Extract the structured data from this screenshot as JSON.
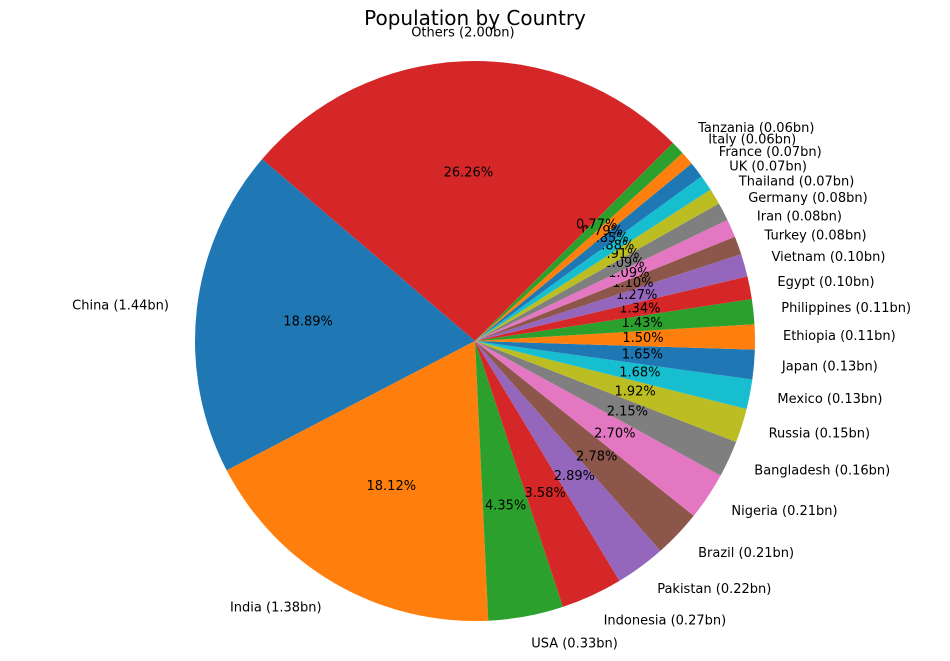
{
  "chart_data": {
    "type": "pie",
    "title": "Population by Country",
    "start_angle_deg": 45,
    "direction": "counterclockwise",
    "slices": [
      {
        "label": "Others (2.00bn)",
        "value": 2.0,
        "pct": "26.26%",
        "color": "#d62728"
      },
      {
        "label": "China (1.44bn)",
        "value": 1.44,
        "pct": "18.89%",
        "color": "#1f77b4"
      },
      {
        "label": "India (1.38bn)",
        "value": 1.38,
        "pct": "18.12%",
        "color": "#ff7f0e"
      },
      {
        "label": "USA (0.33bn)",
        "value": 0.33,
        "pct": "4.35%",
        "color": "#2ca02c"
      },
      {
        "label": "Indonesia (0.27bn)",
        "value": 0.27,
        "pct": "3.58%",
        "color": "#d62728"
      },
      {
        "label": "Pakistan (0.22bn)",
        "value": 0.22,
        "pct": "2.89%",
        "color": "#9467bd"
      },
      {
        "label": "Brazil (0.21bn)",
        "value": 0.21,
        "pct": "2.78%",
        "color": "#8c564b"
      },
      {
        "label": "Nigeria (0.21bn)",
        "value": 0.21,
        "pct": "2.70%",
        "color": "#e377c2"
      },
      {
        "label": "Bangladesh (0.16bn)",
        "value": 0.16,
        "pct": "2.15%",
        "color": "#7f7f7f"
      },
      {
        "label": "Russia (0.15bn)",
        "value": 0.15,
        "pct": "1.92%",
        "color": "#bcbd22"
      },
      {
        "label": "Mexico (0.13bn)",
        "value": 0.13,
        "pct": "1.68%",
        "color": "#17becf"
      },
      {
        "label": "Japan (0.13bn)",
        "value": 0.13,
        "pct": "1.65%",
        "color": "#1f77b4"
      },
      {
        "label": "Ethiopia (0.11bn)",
        "value": 0.11,
        "pct": "1.50%",
        "color": "#ff7f0e"
      },
      {
        "label": "Philippines (0.11bn)",
        "value": 0.11,
        "pct": "1.43%",
        "color": "#2ca02c"
      },
      {
        "label": "Egypt (0.10bn)",
        "value": 0.1,
        "pct": "1.34%",
        "color": "#d62728"
      },
      {
        "label": "Vietnam (0.10bn)",
        "value": 0.1,
        "pct": "1.27%",
        "color": "#9467bd"
      },
      {
        "label": "Turkey (0.08bn)",
        "value": 0.08,
        "pct": "1.10%",
        "color": "#8c564b"
      },
      {
        "label": "Iran (0.08bn)",
        "value": 0.08,
        "pct": "1.09%",
        "color": "#e377c2"
      },
      {
        "label": "Germany (0.08bn)",
        "value": 0.08,
        "pct": "1.09%",
        "color": "#7f7f7f"
      },
      {
        "label": "Thailand (0.07bn)",
        "value": 0.07,
        "pct": "0.91%",
        "color": "#bcbd22"
      },
      {
        "label": "UK (0.07bn)",
        "value": 0.07,
        "pct": "0.88%",
        "color": "#17becf"
      },
      {
        "label": "France (0.07bn)",
        "value": 0.07,
        "pct": "0.85%",
        "color": "#1f77b4"
      },
      {
        "label": "Italy (0.06bn)",
        "value": 0.06,
        "pct": "0.79%",
        "color": "#ff7f0e"
      },
      {
        "label": "Tanzania (0.06bn)",
        "value": 0.06,
        "pct": "0.77%",
        "color": "#2ca02c"
      }
    ]
  }
}
